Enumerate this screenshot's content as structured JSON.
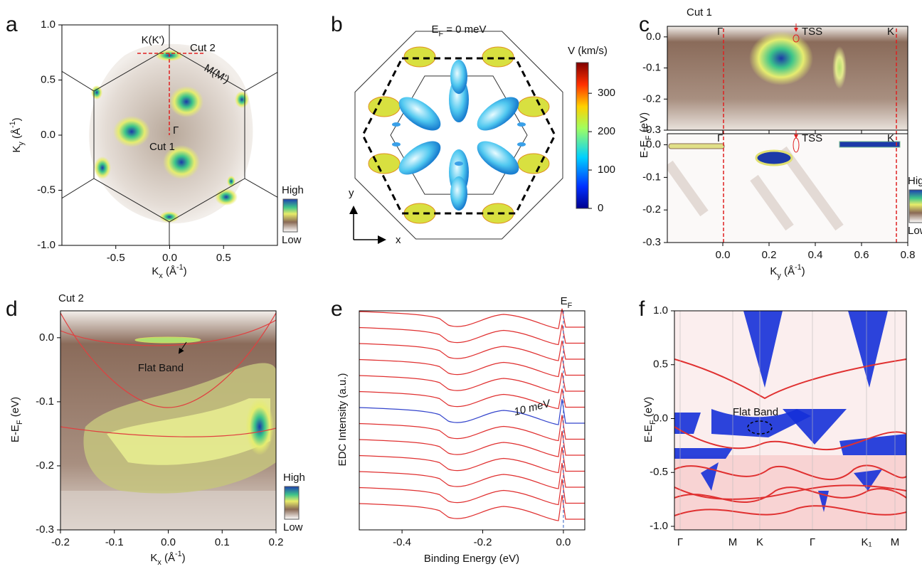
{
  "chart_data": [
    {
      "type": "heatmap",
      "panel": "a",
      "xlim": [
        -1,
        1
      ],
      "ylim": [
        -1,
        1
      ],
      "xticks": [
        -0.5,
        {
          "value": 0,
          "label": "0.0"
        },
        0.5
      ],
      "yticks": [
        {
          "value": -1,
          "label": "-1.0"
        },
        -0.5,
        {
          "value": 0,
          "label": "0.0"
        },
        0.5,
        {
          "value": 1,
          "label": "1.0"
        }
      ],
      "xlabel": [
        "K",
        "x",
        " (Å",
        "-1",
        ")"
      ],
      "ylabel": [
        "K",
        "y",
        " (Å",
        "-1",
        ")"
      ],
      "annotations": [
        "K(K')",
        "Cut 2",
        "M(M')",
        "Γ",
        "Cut 1"
      ],
      "colorbar_labels": [
        "High",
        "Low"
      ]
    },
    {
      "type": "surface3d",
      "panel": "b",
      "title": [
        "E",
        "F",
        " = 0 meV"
      ],
      "colorbar_label": "V (km/s)",
      "clim": [
        0,
        380
      ],
      "cticks": [
        0,
        100,
        200,
        300
      ],
      "axes_labels": [
        "x",
        "y"
      ]
    },
    {
      "type": "heatmap",
      "panel": "c",
      "title": "Cut 1",
      "xlim": [
        -0.24,
        0.8
      ],
      "ylim": [
        -0.3,
        0.034
      ],
      "xticks": [
        {
          "value": 0,
          "label": "0.0"
        },
        0.2,
        0.4,
        0.6,
        0.8
      ],
      "yticks": [
        -0.3,
        -0.2,
        -0.1,
        {
          "value": 0,
          "label": "0.0"
        }
      ],
      "xlabel": [
        "K",
        "y",
        " (Å",
        "-1",
        ")"
      ],
      "ylabel": [
        "E-E",
        "F",
        " (eV)"
      ],
      "annotations": [
        "Γ",
        "TSS",
        "K"
      ],
      "colorbar_labels": [
        "High",
        "Low"
      ]
    },
    {
      "type": "heatmap",
      "panel": "d",
      "title": "Cut 2",
      "xlim": [
        -0.2,
        0.2
      ],
      "ylim": [
        -0.3,
        0.042
      ],
      "xticks": [
        -0.2,
        -0.1,
        {
          "value": 0,
          "label": "0.0"
        },
        0.1,
        0.2
      ],
      "yticks": [
        -0.3,
        -0.2,
        -0.1,
        {
          "value": 0,
          "label": "0.0"
        }
      ],
      "xlabel": [
        "K",
        "x",
        " (Å",
        "-1",
        ")"
      ],
      "ylabel": [
        "E-E",
        "F",
        " (eV)"
      ],
      "annotations": [
        "Flat Band"
      ],
      "colorbar_labels": [
        "High",
        "Low"
      ]
    },
    {
      "type": "edc",
      "panel": "e",
      "xlim": [
        -0.506,
        0.053
      ],
      "xticks": [
        -0.4,
        -0.2,
        {
          "value": 0,
          "label": "0.0"
        }
      ],
      "xlabel": "Binding Energy (eV)",
      "ylabel": "EDC Intensity (a.u.)",
      "fermi_label": [
        "E",
        "F"
      ],
      "annotations": [
        "10 meV"
      ]
    },
    {
      "type": "bands",
      "panel": "f",
      "ylim": [
        -1.033,
        1.0
      ],
      "yticks": [
        {
          "value": -1,
          "label": "-1.0"
        },
        -0.5,
        {
          "value": 0,
          "label": "0.0"
        },
        0.5,
        {
          "value": 1,
          "label": "1.0"
        }
      ],
      "categories": [
        "Γ",
        "M",
        "K",
        "Γ",
        "K₁",
        "M"
      ],
      "ylabel": [
        "E-E",
        "F",
        " (eV)"
      ],
      "annotations": [
        "Flat Band"
      ]
    }
  ]
}
